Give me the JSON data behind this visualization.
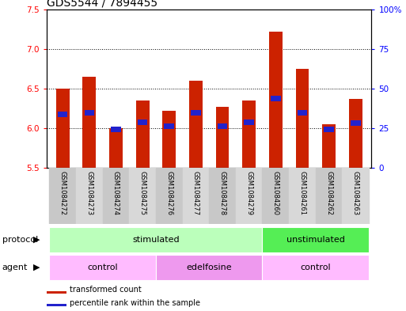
{
  "title": "GDS5544 / 7894455",
  "samples": [
    "GSM1084272",
    "GSM1084273",
    "GSM1084274",
    "GSM1084275",
    "GSM1084276",
    "GSM1084277",
    "GSM1084278",
    "GSM1084279",
    "GSM1084260",
    "GSM1084261",
    "GSM1084262",
    "GSM1084263"
  ],
  "red_top": [
    6.5,
    6.65,
    6.0,
    6.35,
    6.22,
    6.6,
    6.27,
    6.35,
    7.22,
    6.75,
    6.05,
    6.37
  ],
  "blue_pos": [
    6.18,
    6.2,
    5.99,
    6.08,
    6.03,
    6.2,
    6.03,
    6.08,
    6.38,
    6.2,
    5.99,
    6.07
  ],
  "y_min": 5.5,
  "y_max": 7.5,
  "y_ticks_left": [
    5.5,
    6.0,
    6.5,
    7.0,
    7.5
  ],
  "y_ticks_right": [
    0,
    25,
    50,
    75,
    100
  ],
  "y_right_labels": [
    "0",
    "25",
    "50",
    "75",
    "100%"
  ],
  "bar_color": "#cc2200",
  "blue_color": "#2222cc",
  "bar_width": 0.5,
  "protocol_groups": [
    {
      "label": "stimulated",
      "start": 0,
      "end": 7,
      "color": "#bbffbb"
    },
    {
      "label": "unstimulated",
      "start": 8,
      "end": 11,
      "color": "#55ee55"
    }
  ],
  "agent_groups": [
    {
      "label": "control",
      "start": 0,
      "end": 3,
      "color": "#ffbbff"
    },
    {
      "label": "edelfosine",
      "start": 4,
      "end": 7,
      "color": "#ee99ee"
    },
    {
      "label": "control",
      "start": 8,
      "end": 11,
      "color": "#ffbbff"
    }
  ],
  "protocol_label": "protocol",
  "agent_label": "agent",
  "legend_red": "transformed count",
  "legend_blue": "percentile rank within the sample",
  "bg_color": "#ffffff",
  "title_fontsize": 10,
  "tick_fontsize": 7.5,
  "sample_fontsize": 6.0,
  "row_fontsize": 8,
  "legend_fontsize": 7
}
